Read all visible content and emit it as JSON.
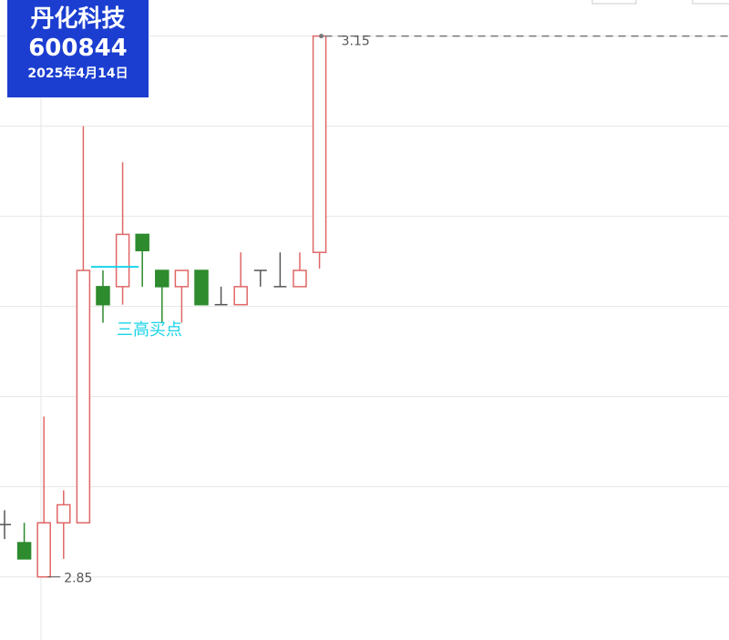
{
  "chart_data": {
    "type": "candlestick",
    "title": "丹化科技",
    "subtitle": "600844",
    "date": "2025年4月14日",
    "categories": [
      null,
      null,
      null,
      null,
      null,
      null,
      null,
      null,
      null,
      null,
      null,
      null,
      null,
      null,
      null,
      null,
      null
    ],
    "open": [
      2.879,
      2.869,
      2.85,
      2.88,
      2.88,
      3.011,
      3.011,
      3.04,
      3.02,
      3.011,
      3.02,
      3.001,
      3.001,
      3.02,
      3.011,
      3.011,
      3.03
    ],
    "high": [
      2.887,
      2.88,
      2.939,
      2.898,
      3.1,
      3.02,
      3.08,
      3.04,
      3.02,
      3.02,
      3.02,
      3.011,
      3.03,
      3.02,
      3.03,
      3.03,
      3.15
    ],
    "low": [
      2.871,
      2.86,
      2.85,
      2.86,
      2.88,
      2.991,
      3.001,
      3.011,
      2.991,
      2.991,
      3.001,
      3.001,
      3.001,
      3.011,
      3.011,
      3.011,
      3.021
    ],
    "close": [
      2.879,
      2.86,
      2.88,
      2.89,
      3.02,
      3.001,
      3.04,
      3.031,
      3.011,
      3.02,
      3.001,
      3.001,
      3.011,
      3.02,
      3.011,
      3.02,
      3.15
    ],
    "up_color": "#e06666",
    "down_color": "#2e8b2e",
    "flat_color": "#555555",
    "ylim": [
      2.815,
      3.17
    ],
    "yticks": [
      2.85,
      2.9,
      2.95,
      3.0,
      3.05,
      3.1,
      3.15
    ],
    "grid": true,
    "max_label": 3.15,
    "min_label": 2.85,
    "annotation": {
      "text": "三高买点",
      "level": 3.022,
      "color": "#19d3e8"
    }
  }
}
